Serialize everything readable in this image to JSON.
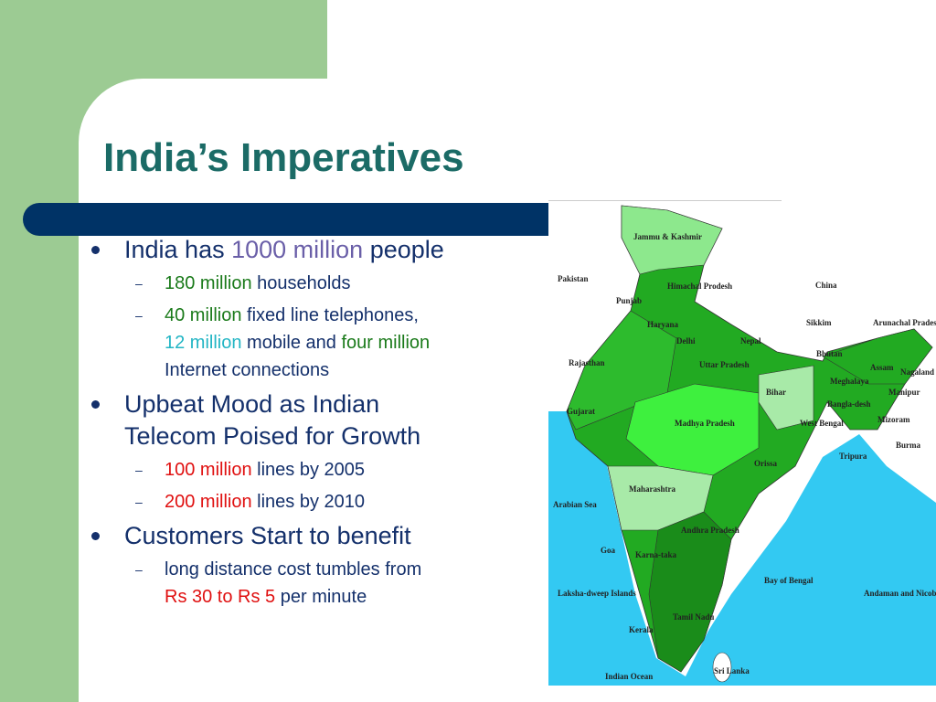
{
  "title": "India’s Imperatives",
  "bullets": [
    {
      "lines": [
        [
          {
            "text": "India has",
            "color": "#14306b"
          },
          {
            "text": "1000 million",
            "color": "#6a5fa8"
          },
          {
            "text": "people",
            "color": "#14306b"
          }
        ]
      ],
      "subs": [
        {
          "lines": [
            [
              {
                "text": "180 million",
                "color": "#1a7a1a"
              },
              {
                "text": "households",
                "color": "#14306b"
              }
            ]
          ]
        },
        {
          "lines": [
            [
              {
                "text": "40 million",
                "color": "#1a7a1a"
              },
              {
                "text": "fixed line telephones,",
                "color": "#14306b"
              }
            ],
            [
              {
                "text": "12 million",
                "color": "#22b5c4"
              },
              {
                "text": "mobile and",
                "color": "#14306b"
              },
              {
                "text": "four million",
                "color": "#1a7a1a"
              }
            ],
            [
              {
                "text": "Internet connections",
                "color": "#14306b"
              }
            ]
          ]
        }
      ]
    },
    {
      "lines": [
        [
          {
            "text": "Upbeat Mood as Indian",
            "color": "#14306b"
          }
        ],
        [
          {
            "text": "Telecom Poised for Growth",
            "color": "#14306b"
          }
        ]
      ],
      "subs": [
        {
          "lines": [
            [
              {
                "text": "100 million",
                "color": "#e01010"
              },
              {
                "text": "lines by 2005",
                "color": "#14306b"
              }
            ]
          ]
        },
        {
          "lines": [
            [
              {
                "text": "200 million",
                "color": "#e01010"
              },
              {
                "text": "lines by 2010",
                "color": "#14306b"
              }
            ]
          ]
        }
      ]
    },
    {
      "lines": [
        [
          {
            "text": "Customers Start to benefit",
            "color": "#14306b"
          }
        ]
      ],
      "subs": [
        {
          "lines": [
            [
              {
                "text": "long distance cost tumbles from",
                "color": "#14306b"
              }
            ],
            [
              {
                "text": "Rs 30 to Rs 5",
                "color": "#e01010"
              },
              {
                "text": "per minute",
                "color": "#14306b"
              }
            ]
          ]
        }
      ]
    }
  ],
  "map": {
    "labels": [
      "Jammu & Kashmir",
      "Pakistan",
      "Himachal Prodesh",
      "China",
      "Punjab",
      "Haryana",
      "Delhi",
      "Nepal",
      "Sikkim",
      "Arunachal Pradesh",
      "Uttar Pradesh",
      "Rajasthan",
      "Bhutan",
      "Assam",
      "Nagaland",
      "Meghalaya",
      "Manipur",
      "Bihar",
      "Bangla-desh",
      "Gujarat",
      "Madhya Pradesh",
      "West Bengal",
      "Mizoram",
      "Tripura",
      "Burma",
      "Orissa",
      "Maharashtra",
      "Arabian Sea",
      "Andhra Pradesh",
      "Goa",
      "Karna-taka",
      "Bay of Bengal",
      "Laksha-dweep Islands",
      "Tamil Nadu",
      "Andaman and Nicobar Islands",
      "Kerala",
      "Indian Ocean",
      "Sri Lanka"
    ]
  }
}
